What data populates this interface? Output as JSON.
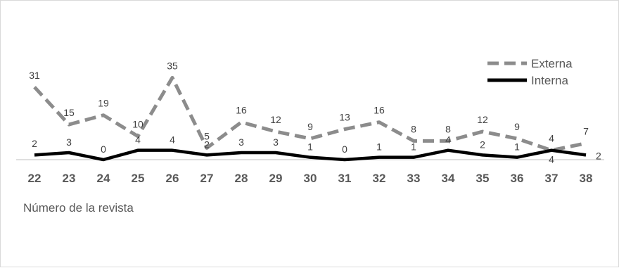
{
  "chart_data": {
    "type": "line",
    "title": "",
    "xlabel": "Número de la revista",
    "ylabel": "",
    "categories": [
      "22",
      "23",
      "24",
      "25",
      "26",
      "27",
      "28",
      "29",
      "30",
      "31",
      "32",
      "33",
      "34",
      "35",
      "36",
      "37",
      "38"
    ],
    "series": [
      {
        "name": "Externa",
        "values": [
          31,
          15,
          19,
          10,
          35,
          5,
          16,
          12,
          9,
          13,
          16,
          8,
          8,
          12,
          9,
          4,
          7
        ],
        "color": "#8c8c8c",
        "dash": "dashed"
      },
      {
        "name": "Interna",
        "values": [
          2,
          3,
          0,
          4,
          4,
          2,
          3,
          3,
          1,
          0,
          1,
          1,
          4,
          2,
          1,
          4,
          2
        ],
        "color": "#000000",
        "dash": "solid"
      }
    ],
    "ylim": [
      0,
      35
    ],
    "grid": false,
    "legend": "top-right"
  }
}
